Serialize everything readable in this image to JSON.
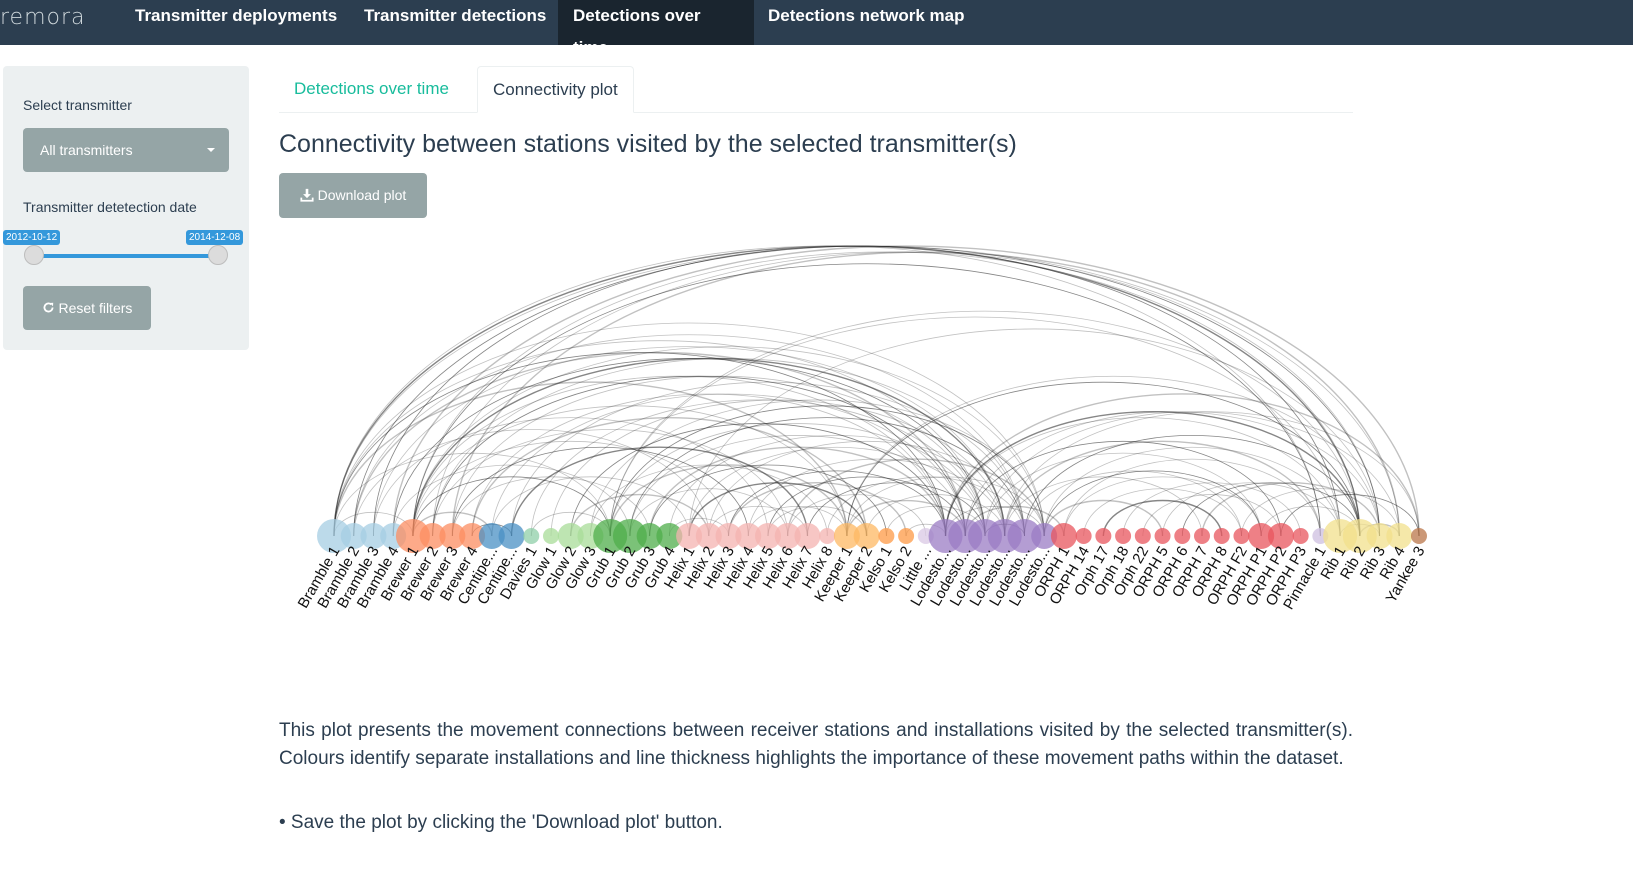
{
  "navbar": {
    "brand": "remora",
    "items": [
      {
        "label": "Transmitter deployments",
        "active": false
      },
      {
        "label": "Transmitter detections",
        "active": false
      },
      {
        "label": "Detections over time",
        "active": true
      },
      {
        "label": "Detections network map",
        "active": false
      }
    ]
  },
  "sidebar": {
    "select_label": "Select transmitter",
    "select_value": "All transmitters",
    "date_label": "Transmitter detetection date",
    "date_min": "2012-10-12",
    "date_max": "2014-12-08",
    "reset_label": "Reset filters",
    "reset_icon": "refresh-icon"
  },
  "tabs": [
    {
      "label": "Detections over time",
      "active": false
    },
    {
      "label": "Connectivity plot",
      "active": true
    }
  ],
  "main": {
    "title": "Connectivity between stations visited by the selected transmitter(s)",
    "download_label": "Download plot",
    "download_icon": "download-icon",
    "description": "This plot presents the movement connections between receiver stations and installations visited by the selected transmitter(s). Colours identify separate installations and line thickness highlights the importance of these movement paths within the dataset.",
    "bullet": "• Save the plot by clicking the 'Download plot' button."
  },
  "chart_data": {
    "type": "arc",
    "nodes": [
      {
        "label": "Bramble 1",
        "group": "Bramble",
        "color": "#a6cee3",
        "size": 3
      },
      {
        "label": "Bramble 2",
        "group": "Bramble",
        "color": "#a6cee3",
        "size": 2
      },
      {
        "label": "Bramble 3",
        "group": "Bramble",
        "color": "#a6cee3",
        "size": 2
      },
      {
        "label": "Bramble 4",
        "group": "Bramble",
        "color": "#a6cee3",
        "size": 2
      },
      {
        "label": "Brewer 1",
        "group": "Brewer",
        "color": "#fc8d62",
        "size": 3
      },
      {
        "label": "Brewer 2",
        "group": "Brewer",
        "color": "#fc8d62",
        "size": 2
      },
      {
        "label": "Brewer 3",
        "group": "Brewer",
        "color": "#fc8d62",
        "size": 2
      },
      {
        "label": "Brewer 4",
        "group": "Brewer",
        "color": "#fc8d62",
        "size": 2
      },
      {
        "label": "Centipe...",
        "group": "Centipede",
        "color": "#4a90c4",
        "size": 2
      },
      {
        "label": "Centipe...",
        "group": "Centipede",
        "color": "#4a90c4",
        "size": 2
      },
      {
        "label": "Davies 1",
        "group": "Davies",
        "color": "#8fcfa8",
        "size": 1
      },
      {
        "label": "Glow 1",
        "group": "Glow",
        "color": "#a8dc98",
        "size": 1
      },
      {
        "label": "Glow 2",
        "group": "Glow",
        "color": "#a8dc98",
        "size": 2
      },
      {
        "label": "Glow 3",
        "group": "Glow",
        "color": "#a8dc98",
        "size": 2
      },
      {
        "label": "Grub 1",
        "group": "Grub",
        "color": "#4fae4b",
        "size": 3
      },
      {
        "label": "Grub 2",
        "group": "Grub",
        "color": "#4fae4b",
        "size": 3
      },
      {
        "label": "Grub 3",
        "group": "Grub",
        "color": "#4fae4b",
        "size": 2
      },
      {
        "label": "Grub 4",
        "group": "Grub",
        "color": "#4fae4b",
        "size": 2
      },
      {
        "label": "Helix 1",
        "group": "Helix",
        "color": "#f4b3b0",
        "size": 2
      },
      {
        "label": "Helix 2",
        "group": "Helix",
        "color": "#f4b3b0",
        "size": 2
      },
      {
        "label": "Helix 3",
        "group": "Helix",
        "color": "#f4b3b0",
        "size": 2
      },
      {
        "label": "Helix 4",
        "group": "Helix",
        "color": "#f4b3b0",
        "size": 2
      },
      {
        "label": "Helix 5",
        "group": "Helix",
        "color": "#f4b3b0",
        "size": 2
      },
      {
        "label": "Helix 6",
        "group": "Helix",
        "color": "#f4b3b0",
        "size": 2
      },
      {
        "label": "Helix 7",
        "group": "Helix",
        "color": "#f4b3b0",
        "size": 2
      },
      {
        "label": "Helix 8",
        "group": "Helix",
        "color": "#f4b3b0",
        "size": 1
      },
      {
        "label": "Keeper 1",
        "group": "Keeper",
        "color": "#fdb863",
        "size": 2
      },
      {
        "label": "Keeper 2",
        "group": "Keeper",
        "color": "#fdb863",
        "size": 2
      },
      {
        "label": "Kelso 1",
        "group": "Kelso",
        "color": "#fd9a45",
        "size": 1
      },
      {
        "label": "Kelso 2",
        "group": "Kelso",
        "color": "#fd9a45",
        "size": 1
      },
      {
        "label": "Little ...",
        "group": "Little",
        "color": "#d9c8e4",
        "size": 1
      },
      {
        "label": "Lodesto...",
        "group": "Lodestone",
        "color": "#9b7cc4",
        "size": 3
      },
      {
        "label": "Lodesto...",
        "group": "Lodestone",
        "color": "#9b7cc4",
        "size": 3
      },
      {
        "label": "Lodesto...",
        "group": "Lodestone",
        "color": "#9b7cc4",
        "size": 3
      },
      {
        "label": "Lodesto...",
        "group": "Lodestone",
        "color": "#9b7cc4",
        "size": 3
      },
      {
        "label": "Lodesto...",
        "group": "Lodestone",
        "color": "#9b7cc4",
        "size": 3
      },
      {
        "label": "Lodesto...",
        "group": "Lodestone",
        "color": "#9b7cc4",
        "size": 2
      },
      {
        "label": "ORPH 1",
        "group": "ORPH",
        "color": "#e8555d",
        "size": 2
      },
      {
        "label": "ORPH 14",
        "group": "ORPH",
        "color": "#e8555d",
        "size": 1
      },
      {
        "label": "Orph 17",
        "group": "ORPH",
        "color": "#e8555d",
        "size": 1
      },
      {
        "label": "Orph 18",
        "group": "ORPH",
        "color": "#e8555d",
        "size": 1
      },
      {
        "label": "Orph 22",
        "group": "ORPH",
        "color": "#e8555d",
        "size": 1
      },
      {
        "label": "ORPH 5",
        "group": "ORPH",
        "color": "#e8555d",
        "size": 1
      },
      {
        "label": "ORPH 6",
        "group": "ORPH",
        "color": "#e8555d",
        "size": 1
      },
      {
        "label": "ORPH 7",
        "group": "ORPH",
        "color": "#e8555d",
        "size": 1
      },
      {
        "label": "ORPH 8",
        "group": "ORPH",
        "color": "#e8555d",
        "size": 1
      },
      {
        "label": "ORPH F2",
        "group": "ORPH",
        "color": "#e8555d",
        "size": 1
      },
      {
        "label": "ORPH P1",
        "group": "ORPH",
        "color": "#e8555d",
        "size": 2
      },
      {
        "label": "ORPH P2",
        "group": "ORPH",
        "color": "#e8555d",
        "size": 2
      },
      {
        "label": "ORPH P3",
        "group": "ORPH",
        "color": "#e8555d",
        "size": 1
      },
      {
        "label": "Pinnacle 1",
        "group": "Pinnacle",
        "color": "#cdbfe0",
        "size": 1
      },
      {
        "label": "Rib 1",
        "group": "Rib",
        "color": "#f2e08c",
        "size": 3
      },
      {
        "label": "Rib 2",
        "group": "Rib",
        "color": "#f2e08c",
        "size": 3
      },
      {
        "label": "Rib 3",
        "group": "Rib",
        "color": "#f2e08c",
        "size": 2
      },
      {
        "label": "Rib 4",
        "group": "Rib",
        "color": "#f2e08c",
        "size": 2
      },
      {
        "label": "Yankee 3",
        "group": "Yankee",
        "color": "#b9764a",
        "size": 1
      }
    ],
    "links": [
      [
        0,
        52
      ],
      [
        0,
        54
      ],
      [
        0,
        36
      ],
      [
        0,
        33
      ],
      [
        0,
        31
      ],
      [
        0,
        26
      ],
      [
        0,
        14
      ],
      [
        0,
        4
      ],
      [
        1,
        53
      ],
      [
        1,
        35
      ],
      [
        1,
        32
      ],
      [
        1,
        19
      ],
      [
        2,
        51
      ],
      [
        2,
        34
      ],
      [
        2,
        22
      ],
      [
        3,
        55
      ],
      [
        3,
        33
      ],
      [
        3,
        15
      ],
      [
        4,
        52
      ],
      [
        4,
        36
      ],
      [
        4,
        34
      ],
      [
        4,
        31
      ],
      [
        4,
        26
      ],
      [
        4,
        20
      ],
      [
        4,
        14
      ],
      [
        4,
        8
      ],
      [
        5,
        53
      ],
      [
        5,
        35
      ],
      [
        5,
        32
      ],
      [
        5,
        23
      ],
      [
        6,
        54
      ],
      [
        6,
        33
      ],
      [
        6,
        21
      ],
      [
        6,
        16
      ],
      [
        7,
        31
      ],
      [
        7,
        27
      ],
      [
        7,
        9
      ],
      [
        8,
        32
      ],
      [
        8,
        18
      ],
      [
        9,
        35
      ],
      [
        9,
        24
      ],
      [
        10,
        33
      ],
      [
        10,
        14
      ],
      [
        11,
        34
      ],
      [
        12,
        31
      ],
      [
        12,
        19
      ],
      [
        13,
        36
      ],
      [
        13,
        25
      ],
      [
        14,
        36
      ],
      [
        14,
        33
      ],
      [
        14,
        26
      ],
      [
        14,
        52
      ],
      [
        15,
        35
      ],
      [
        15,
        32
      ],
      [
        15,
        23
      ],
      [
        16,
        31
      ],
      [
        16,
        28
      ],
      [
        17,
        34
      ],
      [
        17,
        20
      ],
      [
        18,
        33
      ],
      [
        18,
        27
      ],
      [
        18,
        53
      ],
      [
        19,
        35
      ],
      [
        19,
        24
      ],
      [
        20,
        31
      ],
      [
        20,
        29
      ],
      [
        21,
        34
      ],
      [
        21,
        26
      ],
      [
        22,
        32
      ],
      [
        22,
        27
      ],
      [
        23,
        36
      ],
      [
        23,
        30
      ],
      [
        24,
        33
      ],
      [
        25,
        35
      ],
      [
        26,
        36
      ],
      [
        26,
        32
      ],
      [
        26,
        52
      ],
      [
        27,
        34
      ],
      [
        28,
        33
      ],
      [
        29,
        31
      ],
      [
        31,
        52
      ],
      [
        31,
        51
      ],
      [
        31,
        36
      ],
      [
        32,
        53
      ],
      [
        32,
        48
      ],
      [
        32,
        37
      ],
      [
        33,
        54
      ],
      [
        33,
        47
      ],
      [
        33,
        35
      ],
      [
        34,
        55
      ],
      [
        34,
        50
      ],
      [
        34,
        44
      ],
      [
        35,
        52
      ],
      [
        35,
        46
      ],
      [
        36,
        51
      ],
      [
        36,
        42
      ],
      [
        36,
        47
      ],
      [
        37,
        47
      ],
      [
        37,
        50
      ],
      [
        38,
        46
      ],
      [
        39,
        45
      ],
      [
        40,
        49
      ],
      [
        41,
        48
      ],
      [
        42,
        51
      ],
      [
        43,
        52
      ],
      [
        44,
        53
      ],
      [
        46,
        54
      ],
      [
        47,
        52
      ],
      [
        48,
        55
      ],
      [
        51,
        53
      ],
      [
        52,
        54
      ],
      [
        0,
        50
      ],
      [
        4,
        50
      ],
      [
        14,
        51
      ],
      [
        26,
        53
      ],
      [
        31,
        55
      ]
    ]
  }
}
